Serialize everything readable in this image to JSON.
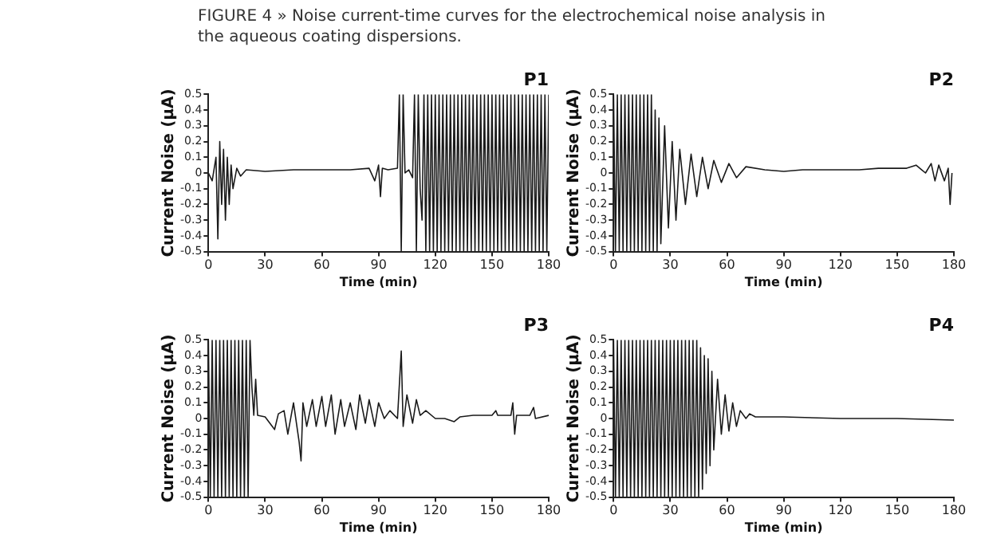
{
  "chart_data": [
    {
      "type": "line",
      "title": "P1",
      "annotations": [
        "FIGURE 4 » Noise current-time curves for the electrochemical noise analysis in the aqueous coating dispersions."
      ],
      "xlabel": "Time (min)",
      "ylabel": "Current Noise (µA)",
      "xlim": [
        0,
        180
      ],
      "xticks": [
        0,
        30,
        60,
        90,
        120,
        150,
        180
      ],
      "ylim": [
        -0.5,
        0.5
      ],
      "yticks": [
        -0.5,
        -0.4,
        -0.3,
        -0.2,
        -0.1,
        0,
        0.1,
        0.2,
        0.3,
        0.4,
        0.5
      ],
      "grid": false,
      "legend": false,
      "marker": "none",
      "line_style": "solid",
      "series": [
        {
          "color": "#1a1a1a",
          "x": [
            0,
            2,
            4,
            5,
            6,
            7,
            8,
            9,
            10,
            11,
            12,
            13,
            15,
            17,
            20,
            30,
            45,
            60,
            75,
            85,
            88,
            90,
            91,
            92,
            95,
            100,
            101,
            102,
            103,
            104,
            106,
            108,
            109,
            110,
            111,
            112,
            113,
            114,
            115,
            116,
            117,
            118,
            119,
            120,
            121,
            122,
            123,
            124,
            125,
            126,
            127,
            128,
            129,
            130,
            131,
            132,
            133,
            134,
            135,
            136,
            137,
            138,
            139,
            140,
            141,
            142,
            143,
            144,
            145,
            146,
            147,
            148,
            149,
            150,
            151,
            152,
            153,
            154,
            155,
            156,
            157,
            158,
            159,
            160,
            161,
            162,
            163,
            164,
            165,
            166,
            167,
            168,
            169,
            170,
            171,
            172,
            173,
            174,
            175,
            176,
            177,
            178,
            179,
            180
          ],
          "values": [
            0,
            -0.05,
            0.1,
            -0.42,
            0.2,
            -0.2,
            0.15,
            -0.3,
            0.1,
            -0.2,
            0.05,
            -0.1,
            0.03,
            -0.02,
            0.02,
            0.01,
            0.02,
            0.02,
            0.02,
            0.03,
            -0.05,
            0.05,
            -0.15,
            0.03,
            0.02,
            0.03,
            0.5,
            -0.5,
            0.5,
            0,
            0.02,
            -0.03,
            0.5,
            -0.5,
            0.5,
            -0.1,
            -0.3,
            0.5,
            -0.5,
            0.5,
            -0.5,
            0.5,
            -0.5,
            0.5,
            -0.5,
            0.5,
            -0.5,
            0.5,
            -0.5,
            0.5,
            -0.5,
            0.5,
            -0.5,
            0.5,
            -0.5,
            0.5,
            -0.5,
            0.5,
            -0.5,
            0.5,
            -0.5,
            0.5,
            -0.5,
            0.5,
            -0.5,
            0.5,
            -0.5,
            0.5,
            -0.5,
            0.5,
            -0.5,
            0.5,
            -0.5,
            0.5,
            -0.5,
            0.5,
            -0.5,
            0.5,
            -0.5,
            0.5,
            -0.5,
            0.5,
            -0.5,
            0.5,
            -0.5,
            0.5,
            -0.5,
            0.5,
            -0.5,
            0.5,
            -0.5,
            0.5,
            -0.5,
            0.5,
            -0.5,
            0.5,
            -0.5,
            0.5,
            -0.5,
            0.5,
            -0.5,
            0.5,
            -0.5,
            0.5
          ]
        }
      ]
    },
    {
      "type": "line",
      "title": "P2",
      "xlabel": "Time (min)",
      "ylabel": "Current Noise (µA)",
      "xlim": [
        0,
        180
      ],
      "xticks": [
        0,
        30,
        60,
        90,
        120,
        150,
        180
      ],
      "ylim": [
        -0.5,
        0.5
      ],
      "yticks": [
        -0.5,
        -0.4,
        -0.3,
        -0.2,
        -0.1,
        0,
        0.1,
        0.2,
        0.3,
        0.4,
        0.5
      ],
      "grid": false,
      "legend": false,
      "marker": "none",
      "line_style": "solid",
      "series": [
        {
          "color": "#1a1a1a",
          "x": [
            0,
            1,
            2,
            3,
            4,
            5,
            6,
            7,
            8,
            9,
            10,
            11,
            12,
            13,
            14,
            15,
            16,
            17,
            18,
            19,
            20,
            21,
            22,
            23,
            24,
            25,
            27,
            29,
            31,
            33,
            35,
            38,
            41,
            44,
            47,
            50,
            53,
            57,
            61,
            65,
            70,
            80,
            90,
            100,
            110,
            120,
            130,
            140,
            150,
            155,
            160,
            163,
            165,
            168,
            170,
            172,
            175,
            177,
            178,
            179
          ],
          "values": [
            0.5,
            -0.5,
            0.5,
            -0.5,
            0.5,
            -0.5,
            0.5,
            -0.5,
            0.5,
            -0.5,
            0.5,
            -0.5,
            0.5,
            -0.5,
            0.5,
            -0.5,
            0.5,
            -0.5,
            0.5,
            -0.5,
            0.5,
            -0.5,
            0.4,
            -0.5,
            0.35,
            -0.45,
            0.3,
            -0.35,
            0.2,
            -0.3,
            0.15,
            -0.2,
            0.12,
            -0.15,
            0.1,
            -0.1,
            0.08,
            -0.06,
            0.06,
            -0.03,
            0.04,
            0.02,
            0.01,
            0.02,
            0.02,
            0.02,
            0.02,
            0.03,
            0.03,
            0.03,
            0.05,
            0.02,
            0,
            0.06,
            -0.05,
            0.05,
            -0.05,
            0.03,
            -0.2,
            0
          ]
        }
      ]
    },
    {
      "type": "line",
      "title": "P3",
      "xlabel": "Time (min)",
      "ylabel": "Current Noise (µA)",
      "xlim": [
        0,
        180
      ],
      "xticks": [
        0,
        30,
        60,
        90,
        120,
        150,
        180
      ],
      "ylim": [
        -0.5,
        0.5
      ],
      "yticks": [
        -0.5,
        -0.4,
        -0.3,
        -0.2,
        -0.1,
        0,
        0.1,
        0.2,
        0.3,
        0.4,
        0.5
      ],
      "grid": false,
      "legend": false,
      "marker": "none",
      "line_style": "solid",
      "series": [
        {
          "color": "#1a1a1a",
          "x": [
            0,
            1,
            2,
            3,
            4,
            5,
            6,
            7,
            8,
            9,
            10,
            11,
            12,
            13,
            14,
            15,
            16,
            17,
            18,
            19,
            20,
            21,
            22,
            23,
            24,
            25,
            26,
            30,
            35,
            37,
            40,
            42,
            45,
            48,
            49,
            50,
            52,
            55,
            57,
            60,
            62,
            65,
            67,
            70,
            72,
            75,
            78,
            80,
            83,
            85,
            88,
            90,
            93,
            96,
            100,
            102,
            103,
            105,
            108,
            110,
            112,
            115,
            120,
            125,
            130,
            133,
            140,
            150,
            152,
            153,
            160,
            161,
            162,
            163,
            170,
            172,
            173,
            180
          ],
          "values": [
            0.5,
            -0.5,
            0.5,
            -0.5,
            0.5,
            -0.5,
            0.5,
            -0.5,
            0.5,
            -0.5,
            0.5,
            -0.5,
            0.5,
            -0.5,
            0.5,
            -0.5,
            0.5,
            -0.5,
            0.5,
            -0.5,
            0.5,
            -0.5,
            0.5,
            0.2,
            0.02,
            0.25,
            0.02,
            0.01,
            -0.07,
            0.03,
            0.05,
            -0.1,
            0.1,
            -0.15,
            -0.27,
            0.1,
            -0.05,
            0.12,
            -0.05,
            0.14,
            -0.05,
            0.15,
            -0.1,
            0.12,
            -0.05,
            0.1,
            -0.07,
            0.15,
            -0.03,
            0.12,
            -0.05,
            0.1,
            0,
            0.05,
            0,
            0.43,
            -0.05,
            0.15,
            -0.03,
            0.12,
            0.02,
            0.05,
            0,
            0,
            -0.02,
            0.01,
            0.02,
            0.02,
            0.05,
            0.02,
            0.02,
            0.1,
            -0.1,
            0.02,
            0.02,
            0.07,
            0,
            0.02
          ]
        }
      ]
    },
    {
      "type": "line",
      "title": "P4",
      "xlabel": "Time (min)",
      "ylabel": "Current Noise (µA)",
      "xlim": [
        0,
        180
      ],
      "xticks": [
        0,
        30,
        60,
        90,
        120,
        150,
        180
      ],
      "ylim": [
        -0.5,
        0.5
      ],
      "yticks": [
        -0.5,
        -0.4,
        -0.3,
        -0.2,
        -0.1,
        0,
        0.1,
        0.2,
        0.3,
        0.4,
        0.5
      ],
      "grid": false,
      "legend": false,
      "marker": "none",
      "line_style": "solid",
      "series": [
        {
          "color": "#1a1a1a",
          "x": [
            0,
            1,
            2,
            3,
            4,
            5,
            6,
            7,
            8,
            9,
            10,
            11,
            12,
            13,
            14,
            15,
            16,
            17,
            18,
            19,
            20,
            21,
            22,
            23,
            24,
            25,
            26,
            27,
            28,
            29,
            30,
            31,
            32,
            33,
            34,
            35,
            36,
            37,
            38,
            39,
            40,
            41,
            42,
            43,
            44,
            45,
            46,
            47,
            48,
            49,
            50,
            51,
            52,
            53,
            55,
            57,
            59,
            61,
            63,
            65,
            67,
            70,
            72,
            75,
            90,
            120,
            150,
            180
          ],
          "values": [
            0.5,
            -0.5,
            0.5,
            -0.5,
            0.5,
            -0.5,
            0.5,
            -0.5,
            0.5,
            -0.5,
            0.5,
            -0.5,
            0.5,
            -0.5,
            0.5,
            -0.5,
            0.5,
            -0.5,
            0.5,
            -0.5,
            0.5,
            -0.5,
            0.5,
            -0.5,
            0.5,
            -0.5,
            0.5,
            -0.5,
            0.5,
            -0.5,
            0.5,
            -0.5,
            0.5,
            -0.5,
            0.5,
            -0.5,
            0.5,
            -0.5,
            0.5,
            -0.5,
            0.5,
            -0.5,
            0.5,
            -0.5,
            0.5,
            -0.5,
            0.45,
            -0.45,
            0.4,
            -0.35,
            0.38,
            -0.3,
            0.3,
            -0.2,
            0.25,
            -0.1,
            0.15,
            -0.08,
            0.1,
            -0.05,
            0.05,
            0,
            0.03,
            0.01,
            0.01,
            0,
            0,
            -0.01
          ]
        }
      ]
    }
  ]
}
